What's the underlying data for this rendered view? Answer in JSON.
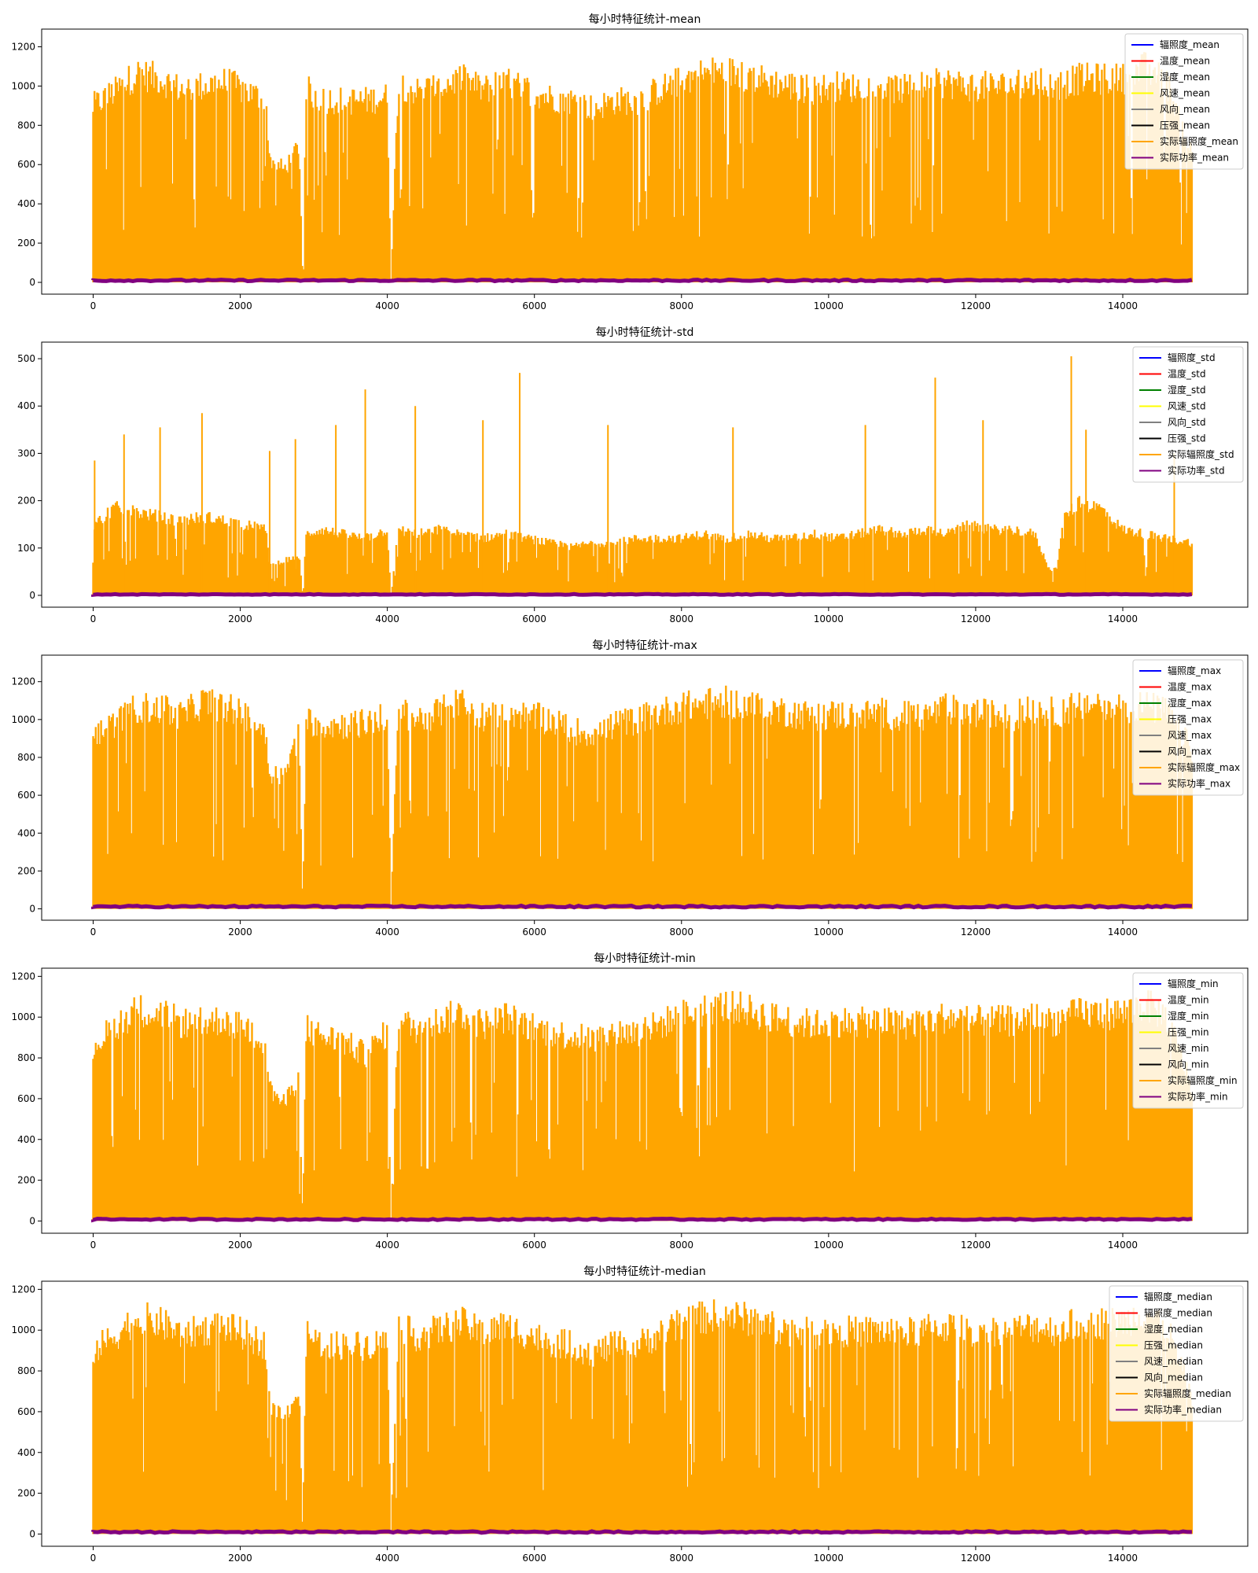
{
  "chart_data": [
    {
      "type": "line",
      "title": "每小时特征统计-mean",
      "xlim": [
        -700,
        15700
      ],
      "ylim": [
        -60,
        1290
      ],
      "xticks": [
        0,
        2000,
        4000,
        6000,
        8000,
        10000,
        12000,
        14000
      ],
      "yticks": [
        0,
        200,
        400,
        600,
        800,
        1000,
        1200
      ],
      "legend_position": "top-right",
      "series": [
        {
          "name": "辐照度_mean",
          "color": "#0000ff"
        },
        {
          "name": "温度_mean",
          "color": "#ff0000"
        },
        {
          "name": "湿度_mean",
          "color": "#008000"
        },
        {
          "name": "风速_mean",
          "color": "#ffff00"
        },
        {
          "name": "风向_mean",
          "color": "#808080"
        },
        {
          "name": "压强_mean",
          "color": "#000000"
        },
        {
          "name": "实际辐照度_mean",
          "color": "#ffa500"
        },
        {
          "name": "实际功率_mean",
          "color": "#800080"
        }
      ],
      "envelope_x": [
        0,
        300,
        600,
        900,
        1200,
        1500,
        1800,
        2100,
        2350,
        2400,
        2600,
        2800,
        2850,
        2900,
        3100,
        3400,
        3700,
        4000,
        4050,
        4150,
        4400,
        4700,
        5000,
        5300,
        5600,
        5900,
        6200,
        6500,
        6800,
        7100,
        7400,
        7700,
        8000,
        8300,
        8600,
        8900,
        9200,
        9500,
        9800,
        10100,
        10400,
        10700,
        11000,
        11300,
        11600,
        11900,
        12200,
        12500,
        12800,
        13100,
        13400,
        13700,
        14000,
        14300,
        14600,
        14950
      ],
      "envelope_max": [
        970,
        1050,
        1150,
        1120,
        1060,
        1080,
        1100,
        1050,
        1000,
        680,
        620,
        760,
        0,
        1060,
        1010,
        1000,
        1000,
        1020,
        0,
        1100,
        1050,
        1080,
        1120,
        1060,
        1100,
        1060,
        1020,
        1000,
        960,
        1000,
        1000,
        1060,
        1110,
        1150,
        1160,
        1140,
        1100,
        1080,
        1060,
        1080,
        1070,
        1080,
        1060,
        1080,
        1100,
        1080,
        1080,
        1080,
        1100,
        1080,
        1120,
        1120,
        1120,
        1180,
        1100,
        700
      ],
      "baseline": 10
    },
    {
      "type": "line",
      "title": "每小时特征统计-std",
      "xlim": [
        -700,
        15700
      ],
      "ylim": [
        -25,
        535
      ],
      "xticks": [
        0,
        2000,
        4000,
        6000,
        8000,
        10000,
        12000,
        14000
      ],
      "yticks": [
        0,
        100,
        200,
        300,
        400,
        500
      ],
      "legend_position": "top-right",
      "series": [
        {
          "name": "辐照度_std",
          "color": "#0000ff"
        },
        {
          "name": "温度_std",
          "color": "#ff0000"
        },
        {
          "name": "湿度_std",
          "color": "#008000"
        },
        {
          "name": "风速_std",
          "color": "#ffff00"
        },
        {
          "name": "风向_std",
          "color": "#808080"
        },
        {
          "name": "压强_std",
          "color": "#000000"
        },
        {
          "name": "实际辐照度_std",
          "color": "#ffa500"
        },
        {
          "name": "实际功率_std",
          "color": "#800080"
        }
      ],
      "envelope_x": [
        0,
        300,
        600,
        900,
        1200,
        1500,
        1800,
        2100,
        2350,
        2400,
        2600,
        2800,
        2850,
        2900,
        3100,
        3400,
        3700,
        4000,
        4050,
        4150,
        4400,
        4700,
        5000,
        5300,
        5600,
        5900,
        6200,
        6500,
        6800,
        7100,
        7400,
        7700,
        8000,
        8300,
        8600,
        8900,
        9200,
        9500,
        9800,
        10100,
        10400,
        10700,
        11000,
        11300,
        11600,
        11900,
        12200,
        12500,
        12800,
        13000,
        13100,
        13200,
        13400,
        13700,
        14000,
        14300,
        14600,
        14950
      ],
      "envelope_max": [
        160,
        200,
        190,
        180,
        170,
        180,
        170,
        160,
        150,
        70,
        80,
        90,
        0,
        140,
        150,
        140,
        130,
        150,
        0,
        150,
        140,
        150,
        140,
        130,
        140,
        130,
        120,
        110,
        120,
        120,
        130,
        130,
        130,
        140,
        130,
        140,
        130,
        130,
        140,
        130,
        140,
        150,
        140,
        150,
        140,
        160,
        150,
        150,
        140,
        60,
        60,
        180,
        210,
        200,
        150,
        140,
        130,
        120
      ],
      "spikes": [
        [
          20,
          285
        ],
        [
          420,
          340
        ],
        [
          910,
          355
        ],
        [
          1480,
          385
        ],
        [
          2400,
          305
        ],
        [
          2750,
          330
        ],
        [
          3300,
          360
        ],
        [
          3700,
          435
        ],
        [
          4380,
          400
        ],
        [
          5300,
          370
        ],
        [
          5800,
          470
        ],
        [
          7000,
          360
        ],
        [
          8700,
          355
        ],
        [
          10500,
          360
        ],
        [
          11450,
          460
        ],
        [
          12100,
          370
        ],
        [
          13300,
          505
        ],
        [
          13500,
          350
        ],
        [
          14700,
          300
        ]
      ],
      "baseline": 2
    },
    {
      "type": "line",
      "title": "每小时特征统计-max",
      "xlim": [
        -700,
        15700
      ],
      "ylim": [
        -60,
        1340
      ],
      "xticks": [
        0,
        2000,
        4000,
        6000,
        8000,
        10000,
        12000,
        14000
      ],
      "yticks": [
        0,
        200,
        400,
        600,
        800,
        1000,
        1200
      ],
      "legend_position": "top-right",
      "series": [
        {
          "name": "辐照度_max",
          "color": "#0000ff"
        },
        {
          "name": "温度_max",
          "color": "#ff0000"
        },
        {
          "name": "湿度_max",
          "color": "#008000"
        },
        {
          "name": "压强_max",
          "color": "#ffff00"
        },
        {
          "name": "风速_max",
          "color": "#808080"
        },
        {
          "name": "风向_max",
          "color": "#000000"
        },
        {
          "name": "实际辐照度_max",
          "color": "#ffa500"
        },
        {
          "name": "实际功率_max",
          "color": "#800080"
        }
      ],
      "envelope_x": [
        0,
        300,
        600,
        900,
        1200,
        1500,
        1800,
        2100,
        2350,
        2400,
        2600,
        2800,
        2850,
        2900,
        3100,
        3400,
        3700,
        4000,
        4050,
        4150,
        4400,
        4700,
        5000,
        5300,
        5600,
        5900,
        6200,
        6500,
        6800,
        7100,
        7400,
        7700,
        8000,
        8300,
        8600,
        8900,
        9200,
        9500,
        9800,
        10100,
        10400,
        10700,
        11000,
        11300,
        11600,
        11900,
        12200,
        12500,
        12800,
        13100,
        13400,
        13700,
        14000,
        14300,
        14600,
        14950
      ],
      "envelope_max": [
        1000,
        1060,
        1150,
        1140,
        1100,
        1180,
        1150,
        1100,
        1000,
        780,
        760,
        1000,
        0,
        1080,
        1050,
        1050,
        1060,
        1100,
        0,
        1130,
        1080,
        1120,
        1180,
        1100,
        1130,
        1100,
        1080,
        1020,
        1000,
        1050,
        1080,
        1120,
        1150,
        1170,
        1180,
        1160,
        1140,
        1120,
        1100,
        1110,
        1100,
        1120,
        1100,
        1100,
        1140,
        1120,
        1110,
        1100,
        1140,
        1120,
        1160,
        1180,
        1150,
        1160,
        1120,
        900
      ],
      "baseline": 12
    },
    {
      "type": "line",
      "title": "每小时特征统计-min",
      "xlim": [
        -700,
        15700
      ],
      "ylim": [
        -60,
        1240
      ],
      "xticks": [
        0,
        2000,
        4000,
        6000,
        8000,
        10000,
        12000,
        14000
      ],
      "yticks": [
        0,
        200,
        400,
        600,
        800,
        1000,
        1200
      ],
      "legend_position": "top-right",
      "series": [
        {
          "name": "辐照度_min",
          "color": "#0000ff"
        },
        {
          "name": "温度_min",
          "color": "#ff0000"
        },
        {
          "name": "湿度_min",
          "color": "#008000"
        },
        {
          "name": "压强_min",
          "color": "#ffff00"
        },
        {
          "name": "风速_min",
          "color": "#808080"
        },
        {
          "name": "风向_min",
          "color": "#000000"
        },
        {
          "name": "实际辐照度_min",
          "color": "#ffa500"
        },
        {
          "name": "实际功率_min",
          "color": "#800080"
        }
      ],
      "envelope_x": [
        0,
        300,
        600,
        900,
        1200,
        1500,
        1800,
        2100,
        2350,
        2400,
        2600,
        2800,
        2850,
        2900,
        3100,
        3400,
        3700,
        4000,
        4050,
        4150,
        4400,
        4700,
        5000,
        5300,
        5600,
        5900,
        6200,
        6500,
        6800,
        7100,
        7400,
        7700,
        8000,
        8300,
        8600,
        8900,
        9200,
        9500,
        9800,
        10100,
        10400,
        10700,
        11000,
        11300,
        11600,
        11900,
        12200,
        12500,
        12800,
        13100,
        13400,
        13700,
        14000,
        14300,
        14600,
        14950
      ],
      "envelope_max": [
        930,
        1030,
        1120,
        1100,
        1050,
        1050,
        1070,
        1000,
        960,
        700,
        620,
        760,
        0,
        1020,
        980,
        950,
        880,
        1000,
        0,
        1060,
        1020,
        1060,
        1100,
        1040,
        1080,
        1040,
        1000,
        980,
        960,
        1000,
        1000,
        1040,
        1090,
        1120,
        1140,
        1120,
        1080,
        1060,
        1040,
        1060,
        1050,
        1060,
        1040,
        1060,
        1080,
        1060,
        1060,
        1060,
        1080,
        1060,
        1100,
        1100,
        1100,
        1150,
        1080,
        700
      ],
      "baseline": 8
    },
    {
      "type": "line",
      "title": "每小时特征统计-median",
      "xlim": [
        -700,
        15700
      ],
      "ylim": [
        -60,
        1240
      ],
      "xticks": [
        0,
        2000,
        4000,
        6000,
        8000,
        10000,
        12000,
        14000
      ],
      "yticks": [
        0,
        200,
        400,
        600,
        800,
        1000,
        1200
      ],
      "legend_position": "top-right",
      "series": [
        {
          "name": "辐照度_median",
          "color": "#0000ff"
        },
        {
          "name": "辐照度_median",
          "color": "#ff0000"
        },
        {
          "name": "湿度_median",
          "color": "#008000"
        },
        {
          "name": "压强_median",
          "color": "#ffff00"
        },
        {
          "name": "风速_median",
          "color": "#808080"
        },
        {
          "name": "风向_median",
          "color": "#000000"
        },
        {
          "name": "实际辐照度_median",
          "color": "#ffa500"
        },
        {
          "name": "实际功率_median",
          "color": "#800080"
        }
      ],
      "envelope_x": [
        0,
        300,
        600,
        900,
        1200,
        1500,
        1800,
        2100,
        2350,
        2400,
        2600,
        2800,
        2850,
        2900,
        3100,
        3400,
        3700,
        4000,
        4050,
        4150,
        4400,
        4700,
        5000,
        5300,
        5600,
        5900,
        6200,
        6500,
        6800,
        7100,
        7400,
        7700,
        8000,
        8300,
        8600,
        8900,
        9200,
        9500,
        9800,
        10100,
        10400,
        10700,
        11000,
        11300,
        11600,
        11900,
        12200,
        12500,
        12800,
        13100,
        13400,
        13700,
        14000,
        14300,
        14600,
        14950
      ],
      "envelope_max": [
        970,
        1050,
        1150,
        1120,
        1060,
        1080,
        1100,
        1050,
        1000,
        680,
        620,
        760,
        0,
        1060,
        1010,
        1000,
        1000,
        1020,
        0,
        1100,
        1050,
        1080,
        1120,
        1060,
        1100,
        1060,
        1020,
        1000,
        960,
        1000,
        1000,
        1060,
        1110,
        1150,
        1160,
        1140,
        1100,
        1080,
        1060,
        1080,
        1070,
        1080,
        1060,
        1080,
        1100,
        1080,
        1080,
        1080,
        1100,
        1080,
        1120,
        1120,
        1120,
        1180,
        1100,
        700
      ],
      "baseline": 10
    }
  ]
}
